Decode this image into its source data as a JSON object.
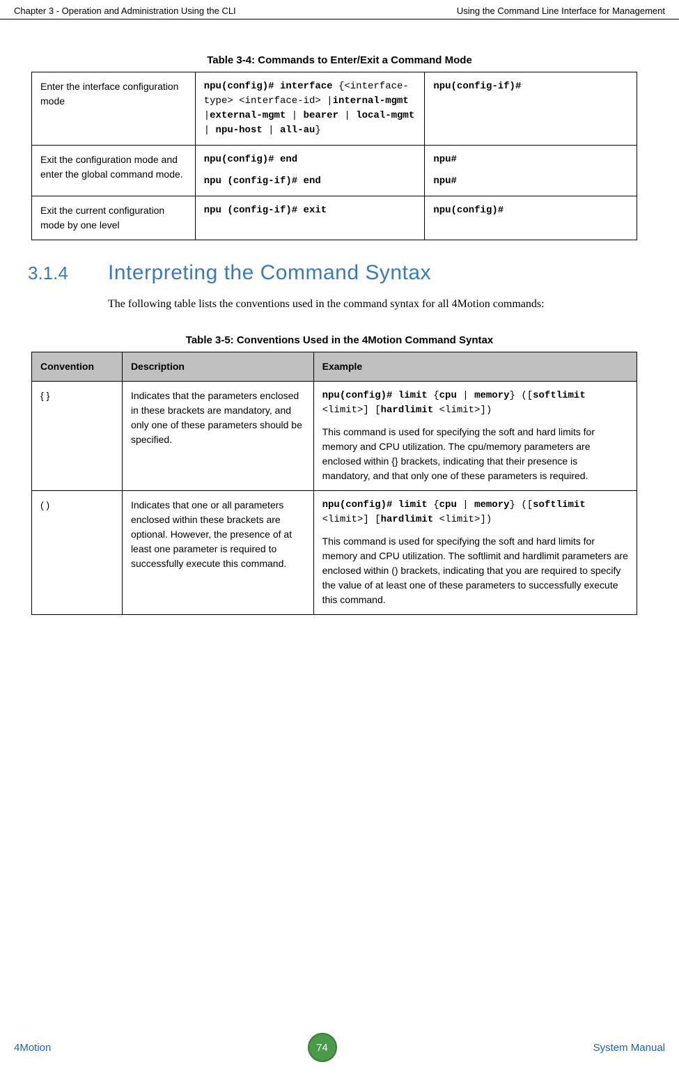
{
  "header": {
    "left": "Chapter 3 - Operation and Administration Using the CLI",
    "right": "Using the Command Line Interface for Management"
  },
  "table1": {
    "caption": "Table 3-4: Commands to Enter/Exit a Command Mode",
    "rows": [
      {
        "c1": "Enter the interface configuration mode",
        "c2_prefix": "npu(config)# interface",
        "c2_line2a": " {<interface-type> <interface-id> |",
        "c2_line2b": "internal-mgmt",
        "c2_line3a": " |",
        "c2_line3b": "external-mgmt",
        "c2_line3c": " | ",
        "c2_line4a": "bearer",
        "c2_line4b": " | ",
        "c2_line4c": "local-mgmt",
        "c2_line4d": " | ",
        "c2_line5a": "npu-host",
        "c2_line5b": " | ",
        "c2_line5c": "all-au",
        "c2_line5d": "}",
        "c3": "npu(config-if)#"
      },
      {
        "c1": "Exit the configuration mode and enter the global command mode.",
        "c2a": "npu(config)# end",
        "c2b": "npu (config-if)# end",
        "c3a": "npu#",
        "c3b": "npu#"
      },
      {
        "c1": "Exit the current configuration mode by one level",
        "c2": "npu (config-if)# exit",
        "c3": "npu(config)#"
      }
    ]
  },
  "section": {
    "num": "3.1.4",
    "title": "Interpreting the Command Syntax",
    "body": "The following table lists the conventions used in the command syntax for all 4Motion commands:"
  },
  "table2": {
    "caption": "Table 3-5: Conventions Used in the 4Motion Command Syntax",
    "headers": [
      "Convention",
      "Description",
      "Example"
    ],
    "rows": [
      {
        "c1": "{ }",
        "c2": "Indicates that the parameters enclosed in these brackets are mandatory, and only one of these parameters should be specified.",
        "c3_cmd_a": "npu(config)# limit",
        "c3_cmd_b": " {",
        "c3_cmd_c": "cpu",
        "c3_cmd_d": " | ",
        "c3_cmd_e": "memory",
        "c3_cmd_f": "} ([",
        "c3_cmd_g": "softlimit",
        "c3_cmd_h": " <limit>]  [",
        "c3_cmd_i": "hardlimit",
        "c3_cmd_j": " <limit>])",
        "c3_desc": "This command is used for specifying the soft and hard limits for memory and CPU utilization. The cpu/memory parameters are enclosed within {} brackets, indicating that their presence is mandatory, and that only one of these parameters is required."
      },
      {
        "c1": "( )",
        "c2": "Indicates that one or all parameters enclosed within these brackets are optional. However, the presence of at least one parameter is required to successfully execute this command.",
        "c3_cmd_a": "npu(config)# limit",
        "c3_cmd_b": " {",
        "c3_cmd_c": "cpu",
        "c3_cmd_d": " | ",
        "c3_cmd_e": "memory",
        "c3_cmd_f": "} ([",
        "c3_cmd_g": "softlimit",
        "c3_cmd_h": " <limit>]  [",
        "c3_cmd_i": "hardlimit",
        "c3_cmd_j": " <limit>])",
        "c3_desc": "This command is used for specifying the soft and hard limits for memory and CPU utilization. The softlimit and hardlimit parameters are enclosed within () brackets, indicating that you are required to specify the value of at least one of these parameters to successfully execute this command."
      }
    ]
  },
  "footer": {
    "left": "4Motion",
    "page": "74",
    "right": "System Manual"
  }
}
